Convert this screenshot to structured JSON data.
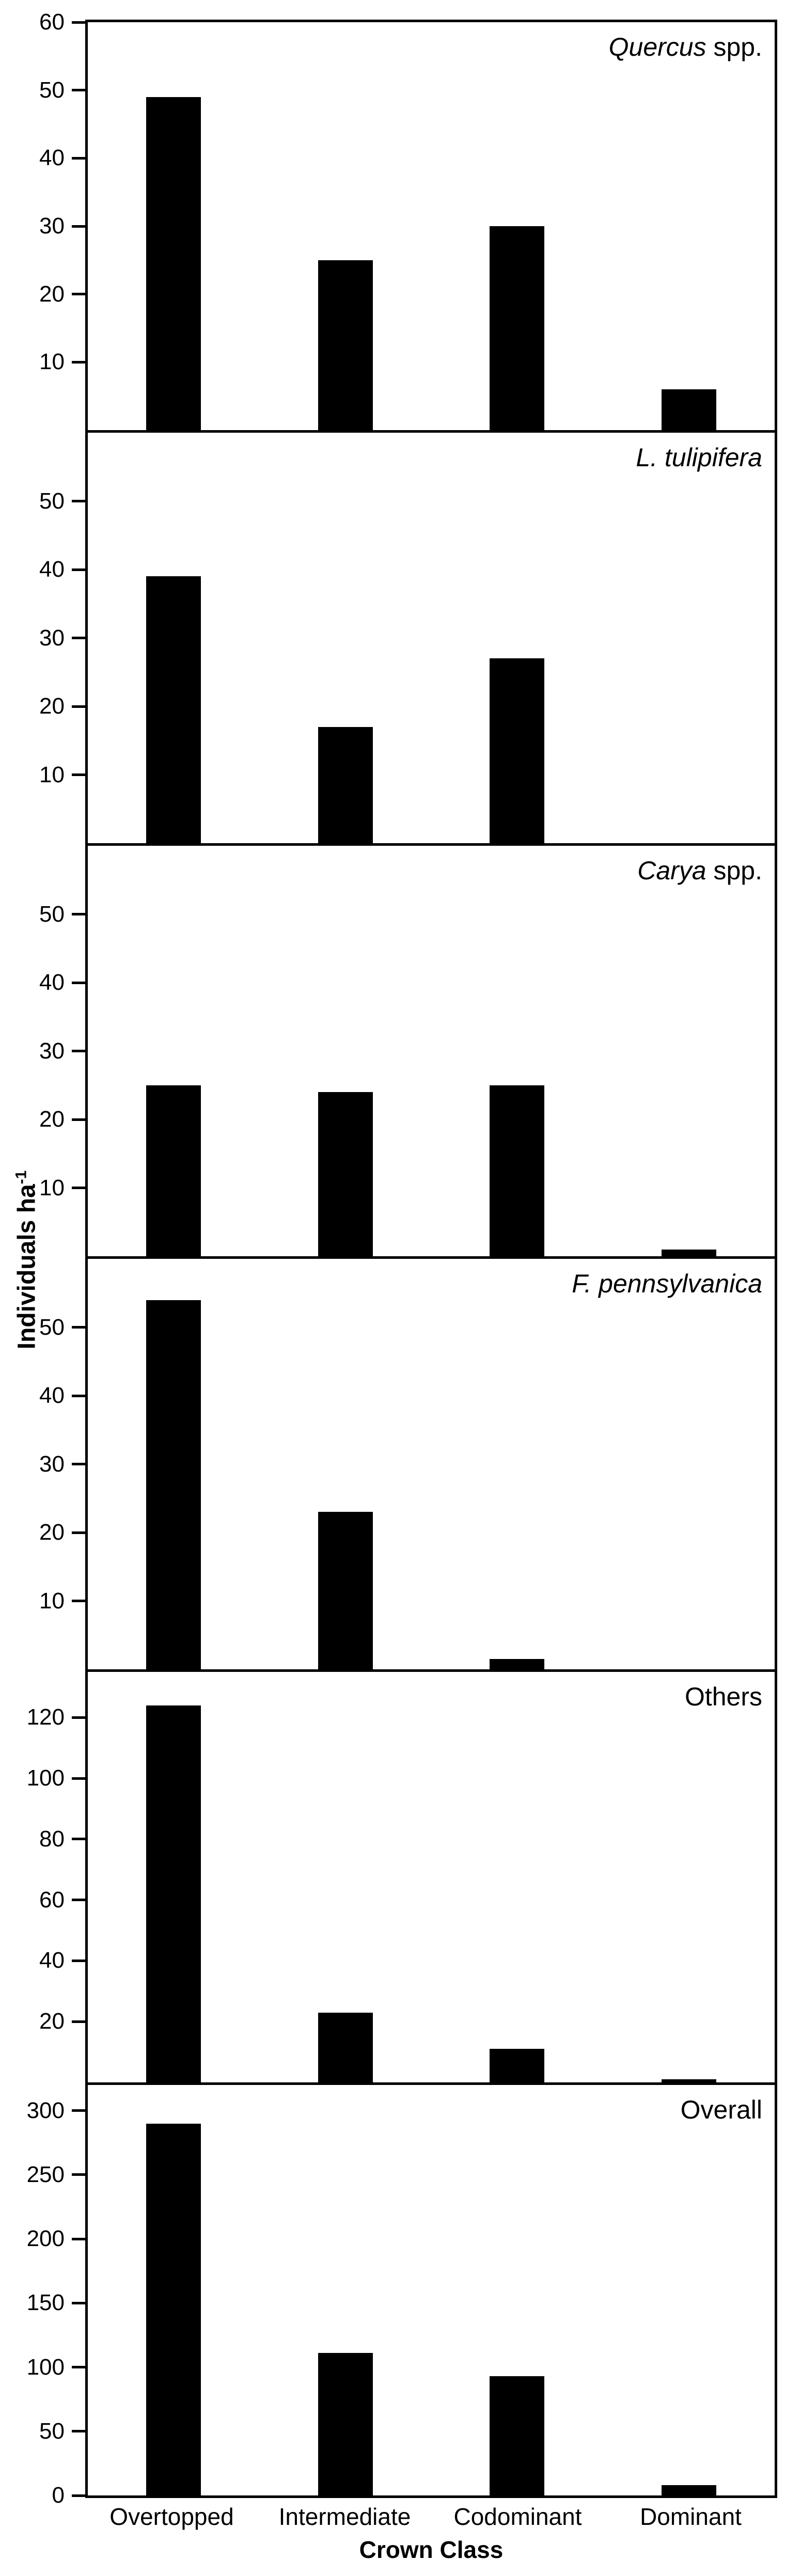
{
  "figure": {
    "background": "#ffffff",
    "ink": "#000000",
    "ylabel_base": "Individuals ha",
    "ylabel_superscript": "-1",
    "xlabel": "Crown Class"
  },
  "chart_data": {
    "type": "bar",
    "bar_color": "#000000",
    "grid": false,
    "legend": "none",
    "categories": [
      "Overtopped",
      "Intermediate",
      "Codominant",
      "Dominant"
    ],
    "xlabel": "Crown Class",
    "ylabel": "Individuals ha⁻¹",
    "panels": [
      {
        "title": "Quercus spp.",
        "title_italic": "Quercus",
        "title_roman": " spp.",
        "values": [
          49,
          25,
          30,
          6
        ],
        "ylim": [
          0,
          60
        ],
        "yticks": [
          10,
          20,
          30,
          40,
          50,
          60
        ]
      },
      {
        "title": "L. tulipifera",
        "title_italic": "L. tulipifera",
        "title_roman": "",
        "values": [
          39,
          17,
          27,
          0
        ],
        "ylim": [
          0,
          60
        ],
        "yticks": [
          10,
          20,
          30,
          40,
          50
        ]
      },
      {
        "title": "Carya spp.",
        "title_italic": "Carya",
        "title_roman": " spp.",
        "values": [
          25,
          24,
          25,
          1
        ],
        "ylim": [
          0,
          60
        ],
        "yticks": [
          10,
          20,
          30,
          40,
          50
        ]
      },
      {
        "title": "F. pennsylvanica",
        "title_italic": "F. pennsylvanica",
        "title_roman": "",
        "values": [
          54,
          23,
          1.5,
          0
        ],
        "ylim": [
          0,
          60
        ],
        "yticks": [
          10,
          20,
          30,
          40,
          50
        ]
      },
      {
        "title": "Others",
        "title_italic": "",
        "title_roman": "Others",
        "values": [
          124,
          23,
          11,
          1
        ],
        "ylim": [
          0,
          135
        ],
        "yticks": [
          20,
          40,
          60,
          80,
          100,
          120
        ]
      },
      {
        "title": "Overall",
        "title_italic": "",
        "title_roman": "Overall",
        "values": [
          290,
          111,
          93,
          8
        ],
        "ylim": [
          0,
          320
        ],
        "yticks": [
          0,
          50,
          100,
          150,
          200,
          250,
          300
        ]
      }
    ]
  }
}
